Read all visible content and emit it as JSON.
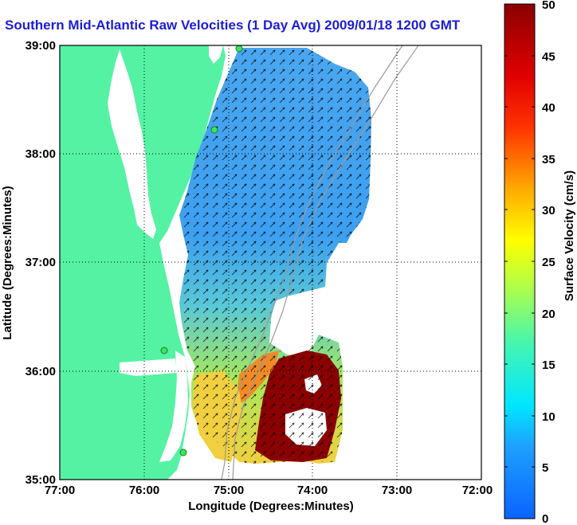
{
  "title": "Southern Mid-Atlantic Raw Velocities (1 Day Avg) 2009/01/18 1200 GMT",
  "x_axis_label": "Longitude (Degrees:Minutes)",
  "y_axis_label": "Latitude (Degrees:Minutes)",
  "colorbar_label": "Surface Velocity (cm/s)",
  "x_ticks": [
    "77:00",
    "76:00",
    "75:00",
    "74:00",
    "73:00",
    "72:00"
  ],
  "y_ticks": [
    "39:00",
    "38:00",
    "37:00",
    "36:00",
    "35:00"
  ],
  "colorbar_ticks": [
    "0",
    "5",
    "10",
    "15",
    "20",
    "25",
    "30",
    "35",
    "40",
    "45",
    "50"
  ],
  "colors": {
    "land": "#55f2a4",
    "low_speed": "#1a8cff",
    "high_speed": "#8b0000",
    "title": "#1d1dd6",
    "station": "#3ce65a"
  },
  "chart_data": {
    "type": "heatmap",
    "xlim": [
      -77,
      -72
    ],
    "ylim": [
      35,
      39
    ],
    "colorbar_range": [
      0,
      50
    ],
    "stations": [
      {
        "lon": -74.92,
        "lat": 38.97
      },
      {
        "lon": -75.1,
        "lat": 38.22
      },
      {
        "lon": -75.27,
        "lat": 36.18
      },
      {
        "lon": -75.48,
        "lat": 35.25
      }
    ]
  }
}
